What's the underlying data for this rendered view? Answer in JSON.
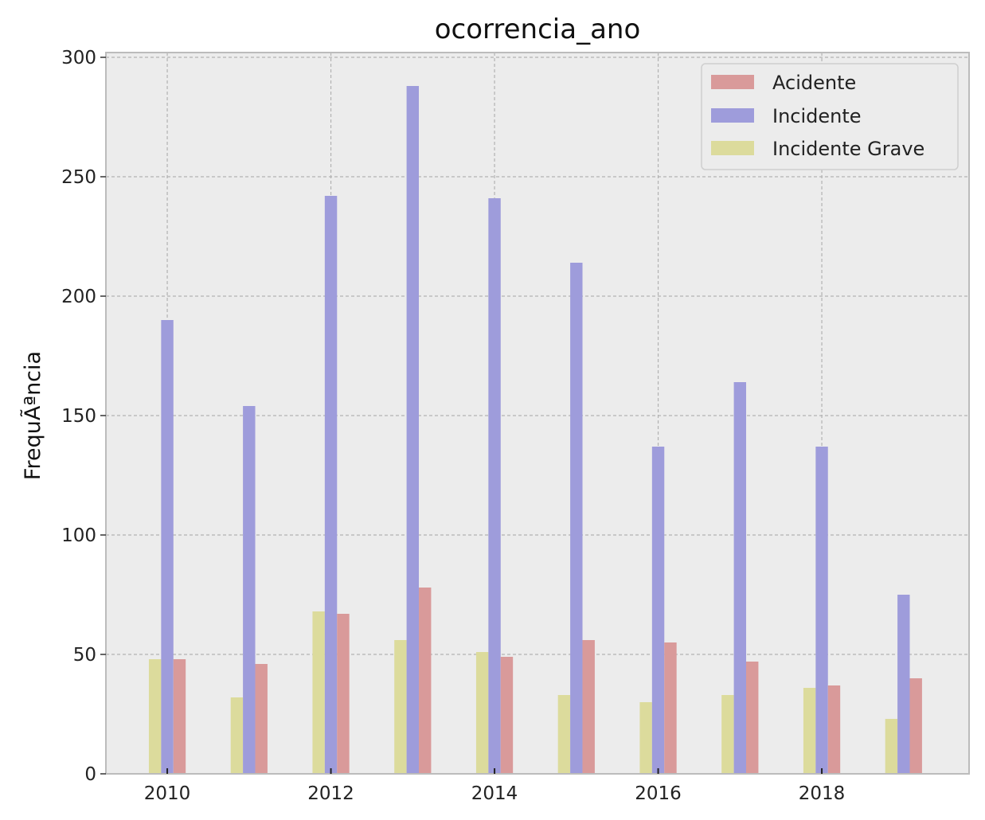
{
  "chart_data": {
    "type": "bar",
    "title": "ocorrencia_ano",
    "xlabel": "",
    "ylabel": "FrequÃªncia",
    "categories": [
      2010,
      2011,
      2012,
      2013,
      2014,
      2015,
      2016,
      2017,
      2018,
      2019
    ],
    "xticks": [
      2010,
      2012,
      2014,
      2016,
      2018
    ],
    "xlim": [
      2009.25,
      2019.8
    ],
    "ylim": [
      0,
      302
    ],
    "yticks": [
      0,
      50,
      100,
      150,
      200,
      250,
      300
    ],
    "grid": true,
    "legend_position": "top-right",
    "series": [
      {
        "name": "Acidente",
        "color": "#d99a9a",
        "offset": 0.15,
        "values": [
          48,
          46,
          67,
          78,
          49,
          56,
          55,
          47,
          37,
          40
        ]
      },
      {
        "name": "Incidente",
        "color": "#9e9cdb",
        "offset": 0.0,
        "values": [
          190,
          154,
          242,
          288,
          241,
          214,
          137,
          164,
          137,
          75
        ]
      },
      {
        "name": "Incidente Grave",
        "color": "#dcdb9c",
        "offset": -0.15,
        "values": [
          48,
          32,
          68,
          56,
          51,
          33,
          30,
          33,
          36,
          23
        ]
      }
    ]
  }
}
